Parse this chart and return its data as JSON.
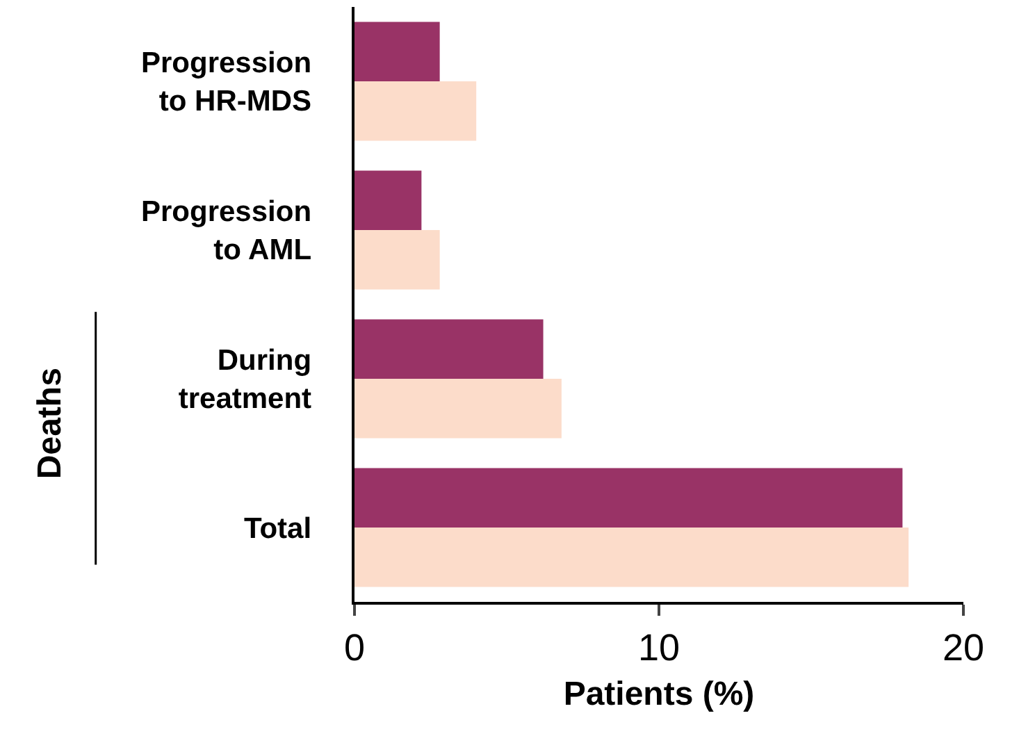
{
  "chart_data": {
    "type": "bar",
    "orientation": "horizontal",
    "xlabel": "Patients (%)",
    "categories": [
      "Progression\nto HR-MDS",
      "Progression\nto AML",
      "During\ntreatment",
      "Total"
    ],
    "series": [
      {
        "color": "#993366",
        "values": [
          2.8,
          2.2,
          6.2,
          18.0
        ]
      },
      {
        "color": "#fcdcca",
        "values": [
          4.0,
          2.8,
          6.8,
          18.2
        ]
      }
    ],
    "xlim": [
      0,
      20
    ],
    "xticks": [
      0,
      10,
      20
    ],
    "legend": false,
    "annotations": [
      "Deaths"
    ]
  }
}
